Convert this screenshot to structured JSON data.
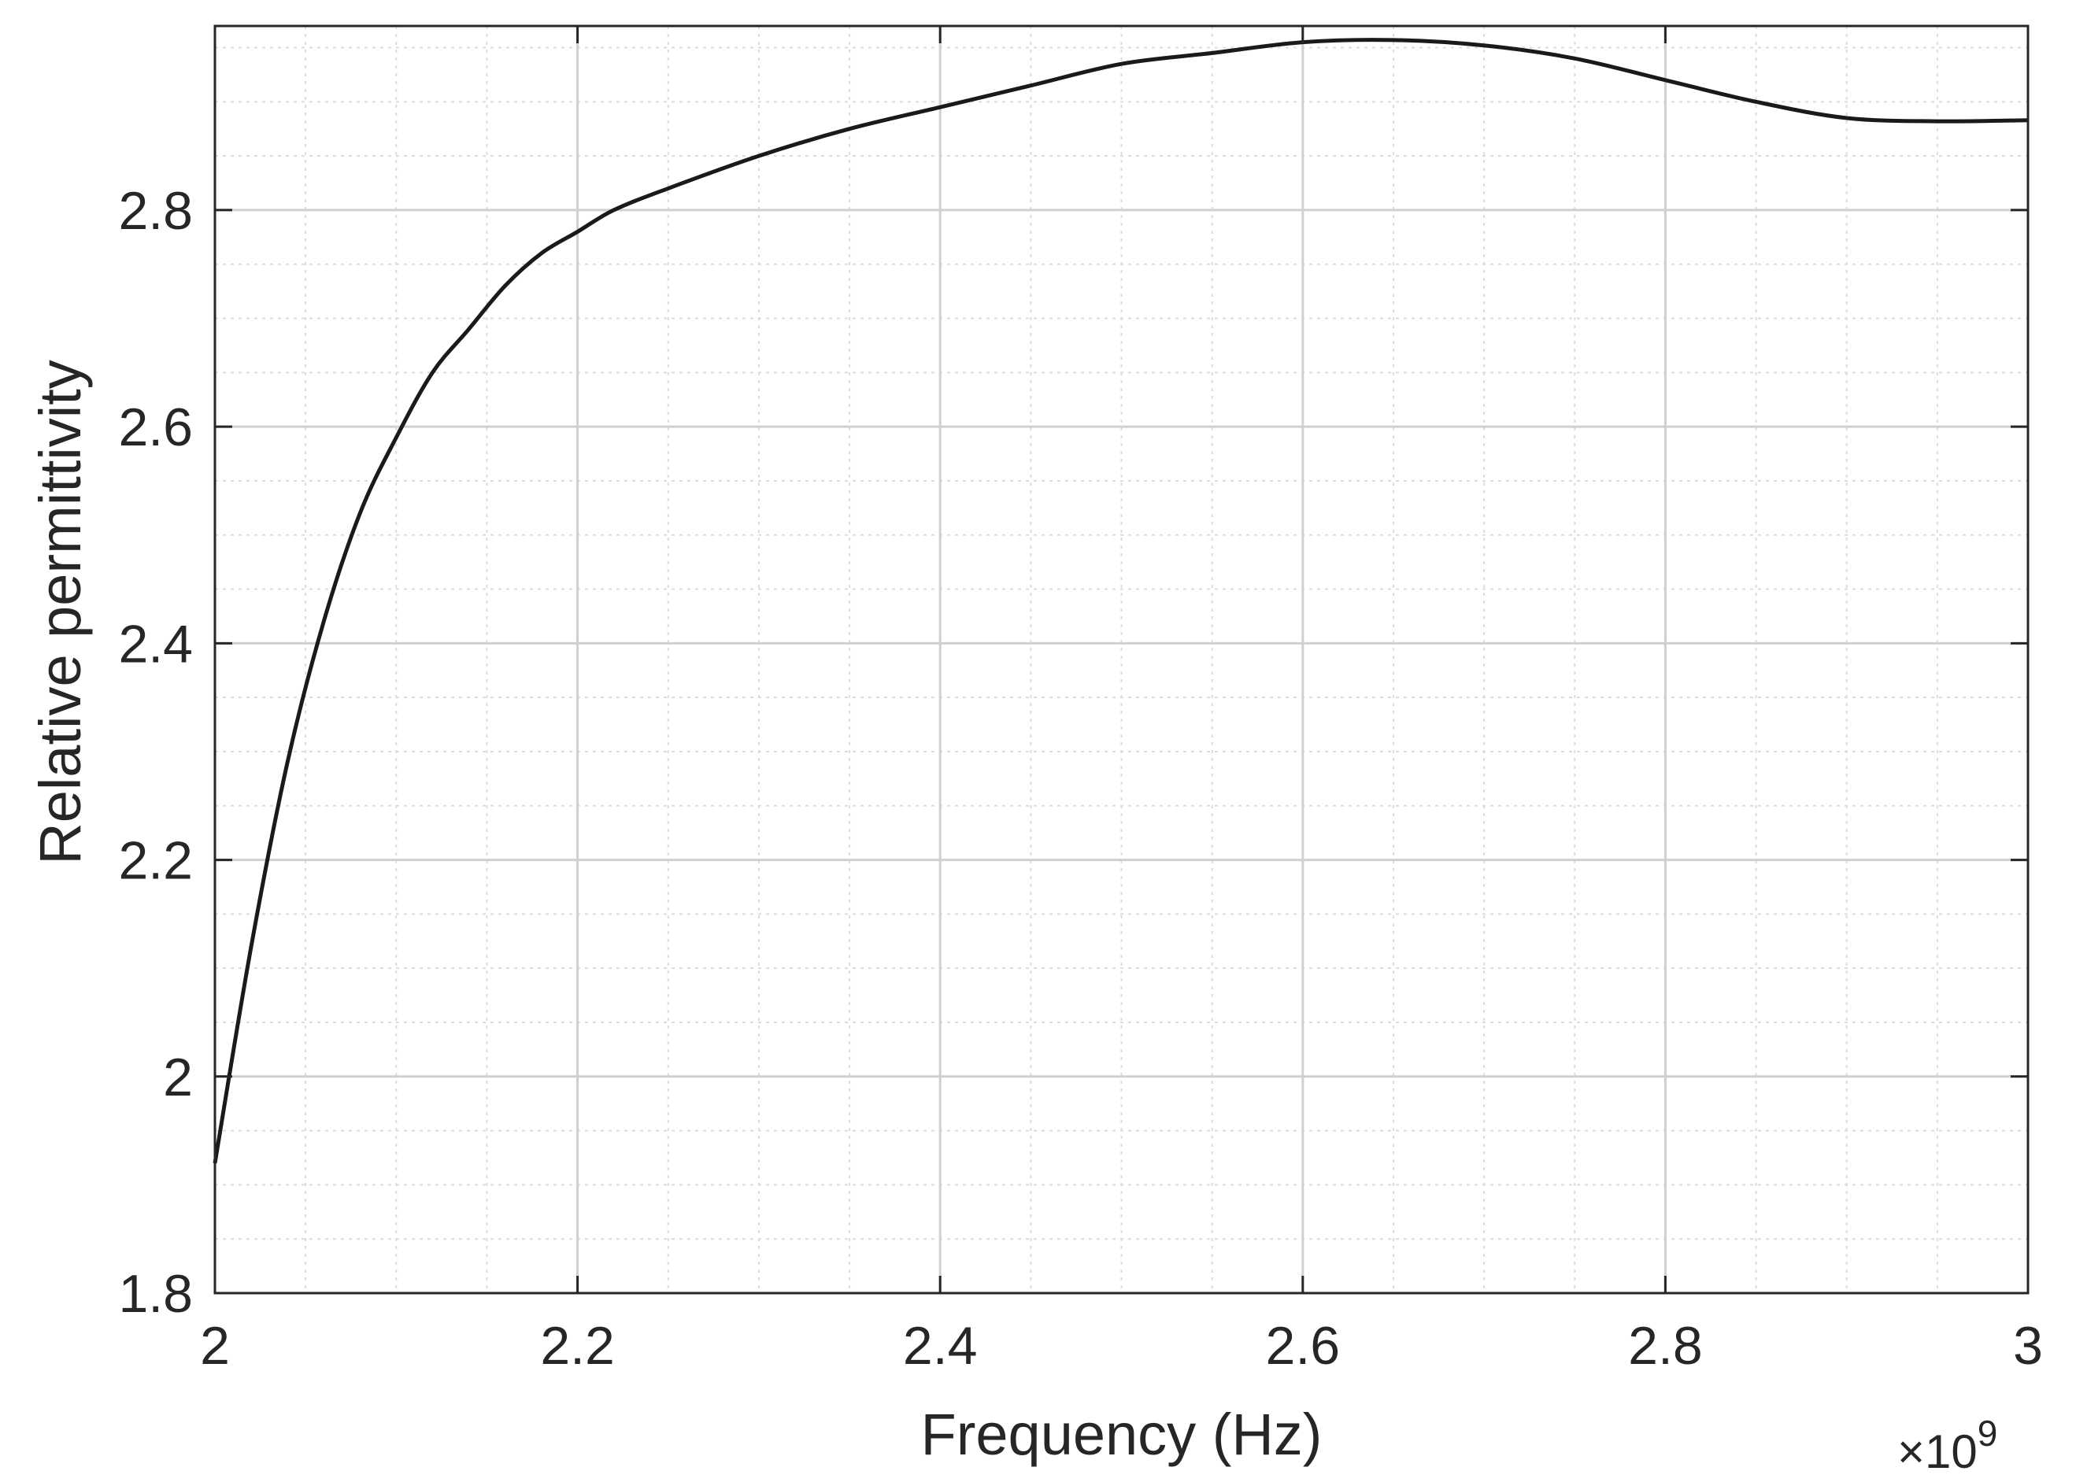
{
  "chart_data": {
    "type": "line",
    "xlabel": "Frequency (Hz)",
    "ylabel": "Relative permittivity",
    "x_scale_label": "×10",
    "x_scale_exponent": "9",
    "xlim": [
      2.0,
      3.0
    ],
    "ylim": [
      1.8,
      2.97
    ],
    "x_ticks": [
      2.0,
      2.2,
      2.4,
      2.6,
      2.8,
      3.0
    ],
    "x_tick_labels": [
      "2",
      "2.2",
      "2.4",
      "2.6",
      "2.8",
      "3"
    ],
    "y_ticks": [
      1.8,
      2.0,
      2.2,
      2.4,
      2.6,
      2.8
    ],
    "y_tick_labels": [
      "1.8",
      "2",
      "2.2",
      "2.4",
      "2.6",
      "2.8"
    ],
    "x_minor_step": 0.05,
    "y_minor_step": 0.05,
    "grid": true,
    "minor_grid": true,
    "line_color": "#1a1a1a",
    "series": [
      {
        "x": [
          2.0,
          2.02,
          2.04,
          2.06,
          2.08,
          2.1,
          2.12,
          2.14,
          2.16,
          2.18,
          2.2,
          2.22,
          2.25,
          2.3,
          2.35,
          2.4,
          2.45,
          2.5,
          2.55,
          2.6,
          2.65,
          2.7,
          2.75,
          2.8,
          2.85,
          2.9,
          2.95,
          3.0
        ],
        "y": [
          1.92,
          2.12,
          2.29,
          2.42,
          2.52,
          2.59,
          2.65,
          2.69,
          2.73,
          2.76,
          2.78,
          2.8,
          2.82,
          2.85,
          2.875,
          2.895,
          2.915,
          2.935,
          2.945,
          2.955,
          2.957,
          2.952,
          2.94,
          2.92,
          2.9,
          2.885,
          2.882,
          2.883
        ]
      }
    ]
  }
}
